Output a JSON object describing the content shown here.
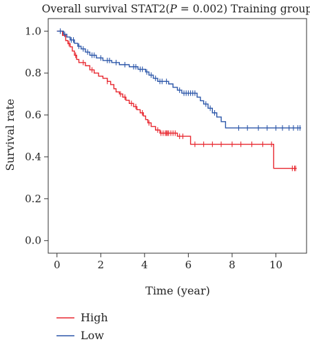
{
  "chart_data": {
    "type": "line",
    "title_prefix": "Overall survival STAT2(",
    "title_p": "P",
    "title_rest": " = 0.002) Training group",
    "xlabel": "Time (year)",
    "ylabel": "Survival rate",
    "xlim": [
      -0.4,
      11.4
    ],
    "ylim": [
      -0.06,
      1.06
    ],
    "x_ticks": [
      0,
      2,
      4,
      6,
      8,
      10
    ],
    "x_tick_labels": [
      "0",
      "2",
      "4",
      "6",
      "8",
      "10"
    ],
    "y_ticks": [
      0.0,
      0.2,
      0.4,
      0.6,
      0.8,
      1.0
    ],
    "y_tick_labels": [
      "0.0",
      "0.2",
      "0.4",
      "0.6",
      "0.8",
      "1.0"
    ],
    "grid": false,
    "legend_position": "bottom-left",
    "series": [
      {
        "name": "High",
        "color": "#e8262e",
        "steps": [
          [
            0,
            1.0
          ],
          [
            0.25,
            0.98
          ],
          [
            0.4,
            0.955
          ],
          [
            0.5,
            0.94
          ],
          [
            0.6,
            0.925
          ],
          [
            0.7,
            0.905
          ],
          [
            0.8,
            0.885
          ],
          [
            0.9,
            0.865
          ],
          [
            1.0,
            0.85
          ],
          [
            1.3,
            0.835
          ],
          [
            1.5,
            0.815
          ],
          [
            1.7,
            0.8
          ],
          [
            1.9,
            0.785
          ],
          [
            2.1,
            0.775
          ],
          [
            2.3,
            0.76
          ],
          [
            2.45,
            0.745
          ],
          [
            2.6,
            0.725
          ],
          [
            2.7,
            0.71
          ],
          [
            2.85,
            0.7
          ],
          [
            3.0,
            0.685
          ],
          [
            3.15,
            0.67
          ],
          [
            3.3,
            0.655
          ],
          [
            3.5,
            0.64
          ],
          [
            3.65,
            0.625
          ],
          [
            3.8,
            0.61
          ],
          [
            3.95,
            0.595
          ],
          [
            4.05,
            0.578
          ],
          [
            4.15,
            0.562
          ],
          [
            4.3,
            0.545
          ],
          [
            4.5,
            0.528
          ],
          [
            4.7,
            0.513
          ],
          [
            5.5,
            0.498
          ],
          [
            6.1,
            0.46
          ],
          [
            9.9,
            0.345
          ],
          [
            10.95,
            0.345
          ]
        ],
        "censor_x": [
          0.55,
          0.85,
          1.2,
          1.6,
          2.3,
          2.9,
          3.1,
          3.4,
          3.6,
          3.9,
          4.2,
          4.6,
          4.75,
          4.85,
          4.95,
          5.0,
          5.05,
          5.1,
          5.2,
          5.3,
          5.4,
          5.6,
          5.75,
          6.3,
          6.7,
          7.1,
          7.5,
          8.0,
          8.4,
          8.9,
          9.4,
          9.8,
          10.75,
          10.85,
          10.9
        ]
      },
      {
        "name": "Low",
        "color": "#2a55a8",
        "steps": [
          [
            0,
            1.0
          ],
          [
            0.3,
            0.985
          ],
          [
            0.45,
            0.972
          ],
          [
            0.6,
            0.958
          ],
          [
            0.8,
            0.942
          ],
          [
            0.95,
            0.928
          ],
          [
            1.1,
            0.915
          ],
          [
            1.3,
            0.9
          ],
          [
            1.5,
            0.885
          ],
          [
            1.8,
            0.872
          ],
          [
            2.1,
            0.86
          ],
          [
            2.5,
            0.85
          ],
          [
            2.85,
            0.84
          ],
          [
            3.3,
            0.83
          ],
          [
            3.7,
            0.818
          ],
          [
            4.05,
            0.805
          ],
          [
            4.2,
            0.79
          ],
          [
            4.4,
            0.775
          ],
          [
            4.6,
            0.76
          ],
          [
            5.1,
            0.748
          ],
          [
            5.3,
            0.732
          ],
          [
            5.5,
            0.718
          ],
          [
            5.7,
            0.704
          ],
          [
            6.4,
            0.685
          ],
          [
            6.55,
            0.668
          ],
          [
            6.7,
            0.652
          ],
          [
            6.9,
            0.632
          ],
          [
            7.1,
            0.61
          ],
          [
            7.3,
            0.59
          ],
          [
            7.5,
            0.568
          ],
          [
            7.7,
            0.538
          ],
          [
            11.15,
            0.538
          ]
        ],
        "censor_x": [
          0.15,
          0.35,
          0.65,
          0.75,
          1.0,
          1.2,
          1.4,
          1.6,
          1.7,
          2.0,
          2.3,
          2.4,
          2.7,
          3.1,
          3.5,
          3.6,
          3.8,
          3.9,
          4.1,
          4.3,
          4.5,
          4.7,
          4.8,
          5.0,
          5.6,
          5.8,
          5.9,
          6.0,
          6.1,
          6.2,
          6.3,
          6.8,
          7.0,
          7.2,
          8.3,
          8.7,
          9.2,
          9.6,
          10.0,
          10.3,
          10.6,
          10.8,
          11.0,
          11.1
        ]
      }
    ]
  }
}
